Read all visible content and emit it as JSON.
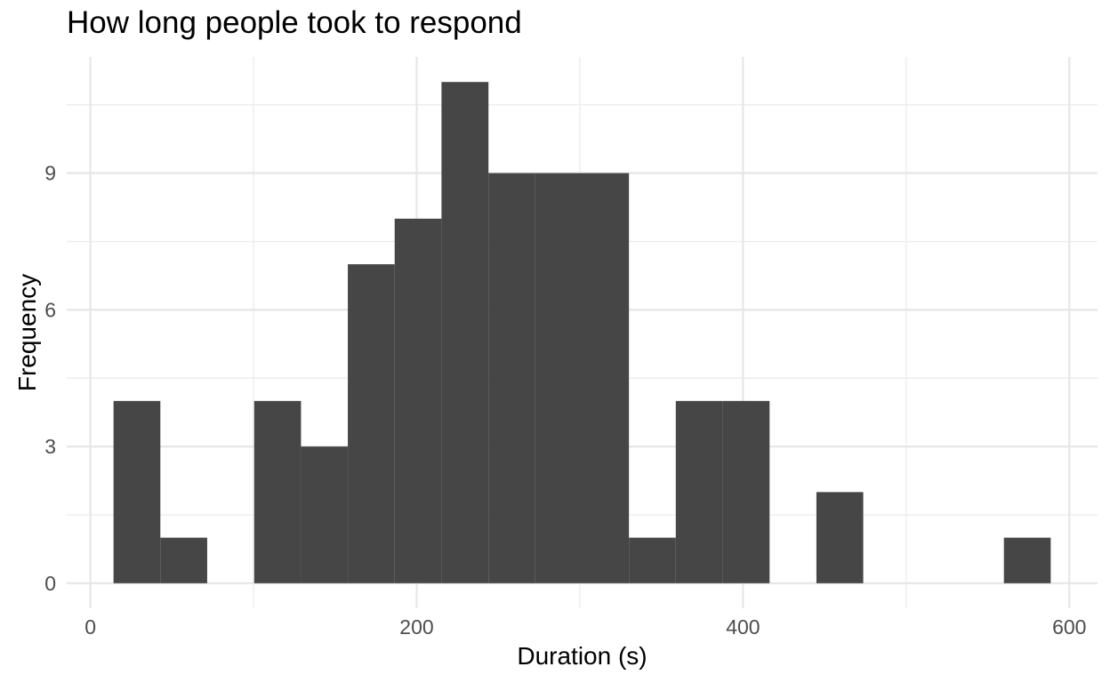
{
  "chart_data": {
    "type": "bar",
    "subtype": "histogram",
    "title": "How long people took to respond",
    "xlabel": "Duration (s)",
    "ylabel": "Frequency",
    "bin_edges": [
      14.2,
      42.9,
      71.6,
      100.4,
      129.1,
      157.8,
      186.5,
      215.2,
      244.0,
      272.7,
      301.4,
      330.1,
      358.8,
      387.6,
      416.3,
      445.0,
      473.7,
      502.4,
      531.2,
      559.9,
      588.6
    ],
    "counts": [
      4,
      1,
      0,
      4,
      3,
      7,
      8,
      11,
      9,
      9,
      9,
      1,
      4,
      4,
      0,
      2,
      0,
      0,
      0,
      1
    ],
    "x_ticks": [
      0,
      200,
      400,
      600
    ],
    "x_minor_ticks": [
      100,
      300,
      500
    ],
    "y_ticks": [
      0,
      3,
      6,
      9
    ],
    "y_minor_ticks": [
      1.5,
      4.5,
      7.5,
      10.5
    ],
    "xlim": [
      -14.5,
      617.3
    ],
    "ylim": [
      -0.55,
      11.55
    ],
    "grid": true,
    "legend_position": "none",
    "bar_color": "#464646",
    "grid_major_color": "#E6E6E6",
    "grid_minor_color": "#EDEDED",
    "tick_label_color": "#4D4D4D",
    "title_color": "#000000",
    "background_color": "#FFFFFF"
  }
}
